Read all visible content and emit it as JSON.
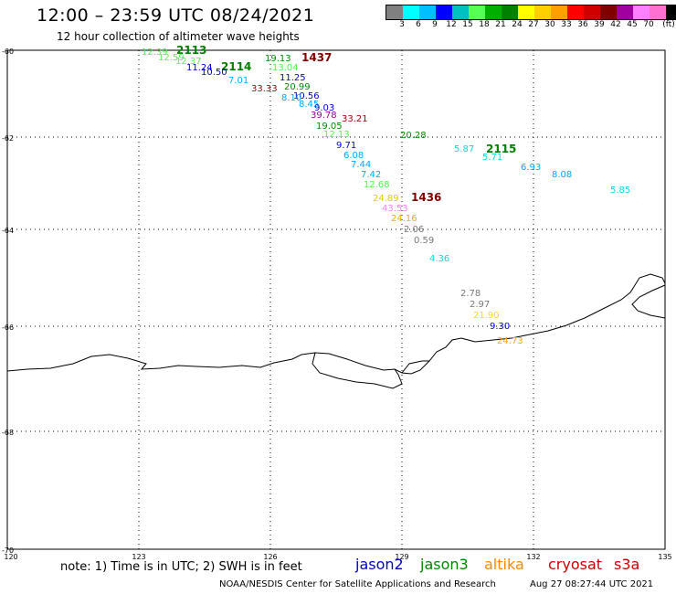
{
  "title": "12:00  – 23:59 UTC 08/24/2021",
  "subtitle": "12 hour collection of altimeter wave heights",
  "colorbar": {
    "unit": "(ft)",
    "colors": [
      "#808080",
      "#00ffff",
      "#00bfff",
      "#0000ff",
      "#00c0c0",
      "#55ff55",
      "#00b000",
      "#008000",
      "#ffff00",
      "#ffd000",
      "#ffa000",
      "#ff0000",
      "#d00000",
      "#800000",
      "#a000a0",
      "#ff80ff",
      "#ff70d0",
      "#000000"
    ],
    "ticks": [
      "3",
      "6",
      "9",
      "12",
      "15",
      "18",
      "21",
      "24",
      "27",
      "30",
      "33",
      "36",
      "39",
      "42",
      "45",
      "70"
    ]
  },
  "axes": {
    "lon_ticks": [
      "120",
      "123",
      "126",
      "129",
      "132",
      "135"
    ],
    "lat_ticks": [
      "-60",
      "-62",
      "-64",
      "-66",
      "-68",
      "-70"
    ]
  },
  "pass_labels": [
    {
      "text": "2113",
      "color": "#008000"
    },
    {
      "text": "2114",
      "color": "#008000"
    },
    {
      "text": "1437",
      "color": "#800000"
    },
    {
      "text": "2115",
      "color": "#008000"
    },
    {
      "text": "1436",
      "color": "#800000"
    }
  ],
  "observations": [
    {
      "text": "12.39",
      "color": "#55ee55"
    },
    {
      "text": "12.59",
      "color": "#55ee55"
    },
    {
      "text": "12.37",
      "color": "#55ee55"
    },
    {
      "text": "11.24",
      "color": "#0000dd"
    },
    {
      "text": "10.50",
      "color": "#0000dd"
    },
    {
      "text": "7.01",
      "color": "#00aaff"
    },
    {
      "text": "19.13",
      "color": "#008800"
    },
    {
      "text": "13.04",
      "color": "#55ee55"
    },
    {
      "text": "11.25",
      "color": "#0000dd"
    },
    {
      "text": "33.33",
      "color": "#990000"
    },
    {
      "text": "20.99",
      "color": "#008800"
    },
    {
      "text": "10.56",
      "color": "#0000dd"
    },
    {
      "text": "8.10",
      "color": "#00aaff"
    },
    {
      "text": "8.45",
      "color": "#00aaff"
    },
    {
      "text": "9.03",
      "color": "#0000dd"
    },
    {
      "text": "39.78",
      "color": "#990099"
    },
    {
      "text": "33.21",
      "color": "#990000"
    },
    {
      "text": "19.05",
      "color": "#008800"
    },
    {
      "text": "12.13",
      "color": "#55ee55"
    },
    {
      "text": "20.28",
      "color": "#008800"
    },
    {
      "text": "9.71",
      "color": "#0000dd"
    },
    {
      "text": "5.87",
      "color": "#00dddd"
    },
    {
      "text": "5.71",
      "color": "#00dddd"
    },
    {
      "text": "6.08",
      "color": "#00aaff"
    },
    {
      "text": "6.93",
      "color": "#00aaff"
    },
    {
      "text": "8.08",
      "color": "#00aaff"
    },
    {
      "text": "7.44",
      "color": "#00aaff"
    },
    {
      "text": "7.42",
      "color": "#00aaff"
    },
    {
      "text": "5.85",
      "color": "#00dddd"
    },
    {
      "text": "12.68",
      "color": "#55ee55"
    },
    {
      "text": "24.89",
      "color": "#ddcc00"
    },
    {
      "text": "43.53",
      "color": "#ee88ee"
    },
    {
      "text": "24.16",
      "color": "#ffaa00"
    },
    {
      "text": "2.06",
      "color": "#777777"
    },
    {
      "text": "0.59",
      "color": "#777777"
    },
    {
      "text": "4.36",
      "color": "#00dddd"
    },
    {
      "text": "2.78",
      "color": "#777777"
    },
    {
      "text": "2.97",
      "color": "#777777"
    },
    {
      "text": "21.90",
      "color": "#ffdd00"
    },
    {
      "text": "9.30",
      "color": "#0000dd"
    },
    {
      "text": "24.73",
      "color": "#ffaa00"
    }
  ],
  "note": "note:  1) Time is in UTC;  2) SWH is in feet",
  "legend": [
    {
      "name": "jason2",
      "color": "#0000cc"
    },
    {
      "name": "jason3",
      "color": "#008800"
    },
    {
      "name": "altika",
      "color": "#ff8800"
    },
    {
      "name": "cryosat",
      "color": "#cc0000"
    },
    {
      "name": "s3a",
      "color": "#cc0000"
    }
  ],
  "footer_left": "NOAA/NESDIS Center for Satellite Applications and Research",
  "footer_right": "Aug 27 08:27:44 UTC 2021"
}
